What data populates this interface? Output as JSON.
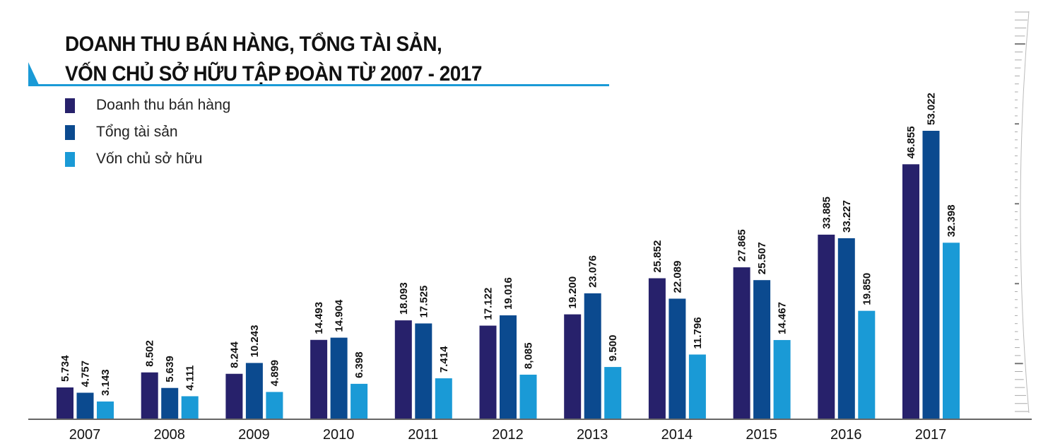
{
  "chart_data": {
    "type": "bar",
    "title_lines": [
      "DOANH THU BÁN HÀNG, TỔNG TÀI SẢN,",
      "VỐN CHỦ SỞ HỮU TẬP ĐOÀN TỪ 2007 - 2017"
    ],
    "categories": [
      "2007",
      "2008",
      "2009",
      "2010",
      "2011",
      "2012",
      "2013",
      "2014",
      "2015",
      "2016",
      "2017"
    ],
    "series": [
      {
        "name": "Doanh thu bán hàng",
        "color": "#27216b",
        "values": [
          5.734,
          8.502,
          8.244,
          14.493,
          18.093,
          17.122,
          19.2,
          25.852,
          27.865,
          33.885,
          46.855
        ],
        "labels": [
          "5.734",
          "8.502",
          "8.244",
          "14.493",
          "18.093",
          "17.122",
          "19.200",
          "25.852",
          "27.865",
          "33.885",
          "46.855"
        ]
      },
      {
        "name": "Tổng tài sản",
        "color": "#0b4a8f",
        "values": [
          4.757,
          5.639,
          10.243,
          14.904,
          17.525,
          19.016,
          23.076,
          22.089,
          25.507,
          33.227,
          53.022
        ],
        "labels": [
          "4.757",
          "5.639",
          "10.243",
          "14.904",
          "17.525",
          "19.016",
          "23.076",
          "22.089",
          "25.507",
          "33.227",
          "53.022"
        ]
      },
      {
        "name": "Vốn chủ sở hữu",
        "color": "#1a9ad6",
        "values": [
          3.143,
          4.111,
          4.899,
          6.398,
          7.414,
          8.085,
          9.5,
          11.796,
          14.467,
          19.85,
          32.398
        ],
        "labels": [
          "3.143",
          "4.111",
          "4.899",
          "6.398",
          "7.414",
          "8,085",
          "9.500",
          "11.796",
          "14.467",
          "19.850",
          "32.398"
        ]
      }
    ],
    "xlabel": "",
    "ylabel": "",
    "ylim": [
      0,
      53.022
    ],
    "grid": false,
    "legend_position": "top-left",
    "accent_color": "#1a9ad6"
  }
}
